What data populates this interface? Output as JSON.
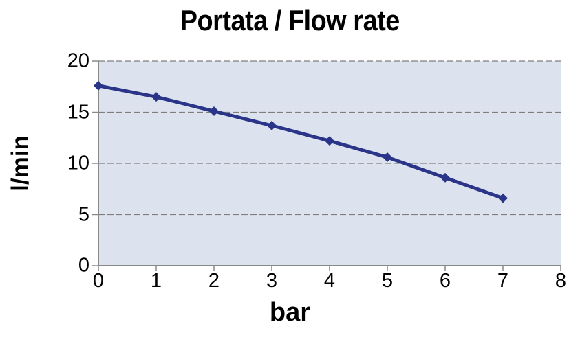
{
  "chart_data": {
    "type": "line",
    "title": "Portata / Flow rate",
    "xlabel": "bar",
    "ylabel": "l/min",
    "x": [
      0,
      1,
      2,
      3,
      4,
      5,
      6,
      7
    ],
    "values": [
      17.6,
      16.5,
      15.1,
      13.7,
      12.2,
      10.6,
      8.6,
      6.6
    ],
    "xlim": [
      0,
      8
    ],
    "ylim": [
      0,
      20
    ],
    "xticks": [
      "0",
      "1",
      "2",
      "3",
      "4",
      "5",
      "6",
      "7",
      "8"
    ],
    "yticks": [
      "0",
      "5",
      "10",
      "15",
      "20"
    ],
    "grid": "horizontal-dashed",
    "legend": "none",
    "marker": "diamond",
    "colors": {
      "line": "#2a3488",
      "marker": "#2a3488",
      "plot_background": "#dde3ee",
      "gridline": "#7f7f7f",
      "axis": "#898989",
      "text": "#000000"
    }
  }
}
